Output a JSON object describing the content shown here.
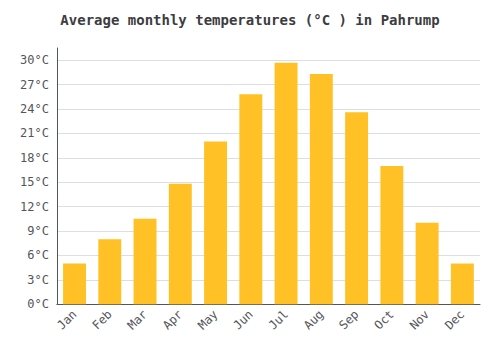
{
  "chart_data": {
    "type": "bar",
    "title": "Average monthly temperatures (°C ) in Pahrump",
    "categories": [
      "Jan",
      "Feb",
      "Mar",
      "Apr",
      "May",
      "Jun",
      "Jul",
      "Aug",
      "Sep",
      "Oct",
      "Nov",
      "Dec"
    ],
    "values": [
      5.0,
      8.0,
      10.5,
      14.8,
      20.0,
      25.8,
      29.7,
      28.3,
      23.6,
      17.0,
      10.0,
      5.0
    ],
    "color": "#FFC125",
    "ylim": [
      0,
      31.5
    ],
    "yticks": [
      {
        "value": 0,
        "label": "0°C"
      },
      {
        "value": 3,
        "label": "3°C"
      },
      {
        "value": 6,
        "label": "6°C"
      },
      {
        "value": 9,
        "label": "9°C"
      },
      {
        "value": 12,
        "label": "12°C"
      },
      {
        "value": 15,
        "label": "15°C"
      },
      {
        "value": 18,
        "label": "18°C"
      },
      {
        "value": 21,
        "label": "21°C"
      },
      {
        "value": 24,
        "label": "24°C"
      },
      {
        "value": 27,
        "label": "27°C"
      },
      {
        "value": 30,
        "label": "30°C"
      }
    ],
    "grid": true
  }
}
